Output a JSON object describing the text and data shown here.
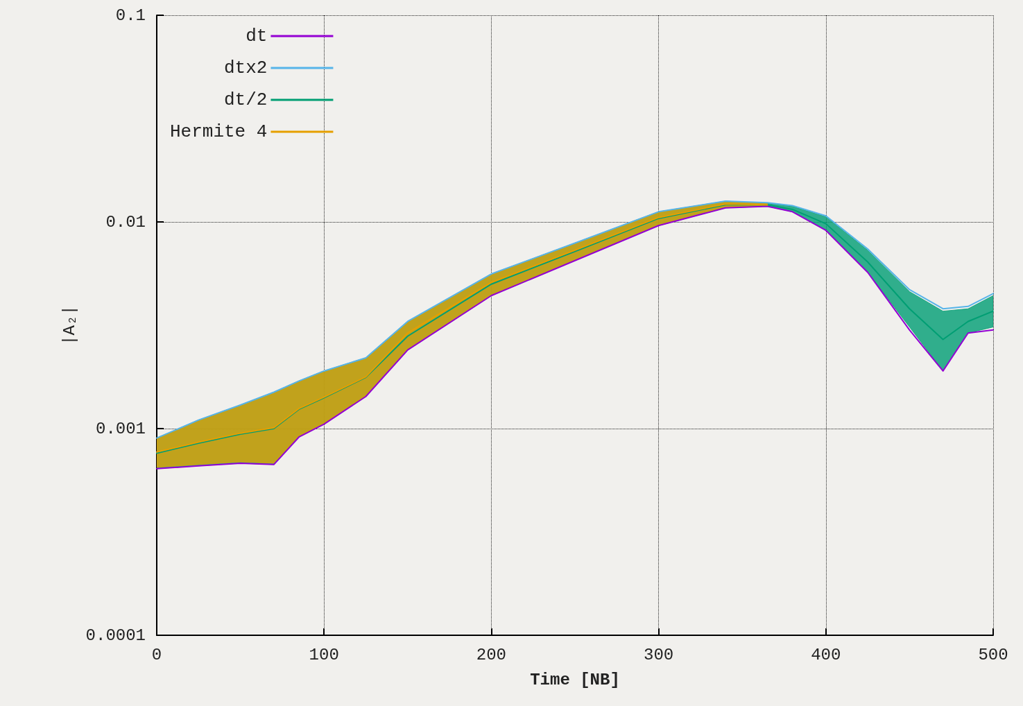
{
  "chart_data": {
    "type": "line",
    "xlabel": "Time [NB]",
    "ylabel": "|A₂|",
    "log": "y",
    "grid": true,
    "legend": "top left",
    "marker": "none",
    "line_style": "solid",
    "xlim": [
      0,
      500
    ],
    "xticks": [
      0,
      100,
      200,
      300,
      400,
      500
    ],
    "ylim": [
      0.0001,
      0.1
    ],
    "yticks": [
      0.0001,
      0.001,
      0.01,
      0.1
    ],
    "series": [
      {
        "name": "dt",
        "color": "#9400d3",
        "x": [
          0,
          25,
          50,
          70,
          85,
          100,
          125,
          150,
          200,
          250,
          300,
          340,
          365,
          380,
          400,
          425,
          450,
          470,
          485,
          500
        ],
        "values": [
          0.00064,
          0.00066,
          0.00068,
          0.00067,
          0.00091,
          0.00105,
          0.00143,
          0.0024,
          0.0044,
          0.0065,
          0.0096,
          0.0117,
          0.0119,
          0.0112,
          0.0091,
          0.0057,
          0.003,
          0.0019,
          0.0029,
          0.003
        ]
      },
      {
        "name": "dtx2",
        "color": "#56b4e9",
        "x": [
          0,
          25,
          50,
          70,
          85,
          100,
          125,
          150,
          200,
          250,
          300,
          340,
          365,
          380,
          400,
          425,
          450,
          470,
          485,
          500
        ],
        "values": [
          0.0009,
          0.0011,
          0.0013,
          0.0015,
          0.0017,
          0.0019,
          0.0022,
          0.0033,
          0.0056,
          0.0079,
          0.0112,
          0.0126,
          0.0124,
          0.012,
          0.0107,
          0.0074,
          0.0047,
          0.0038,
          0.0039,
          0.0045
        ]
      },
      {
        "name": "dt/2",
        "color": "#009e73",
        "x": [
          0,
          25,
          50,
          70,
          85,
          100,
          125,
          150,
          200,
          250,
          300,
          340,
          365,
          380,
          400,
          425,
          450,
          470,
          485,
          500
        ],
        "values": [
          0.00076,
          0.00085,
          0.00094,
          0.001,
          0.00124,
          0.00141,
          0.00177,
          0.0028,
          0.005,
          0.0072,
          0.0104,
          0.0121,
          0.0121,
          0.0115,
          0.0098,
          0.0064,
          0.0038,
          0.0027,
          0.0033,
          0.0037
        ],
        "lower": [
          0.00064,
          0.00066,
          0.00068,
          0.00067,
          0.00091,
          0.00105,
          0.00143,
          0.0024,
          0.0044,
          0.0065,
          0.0096,
          0.0117,
          0.0119,
          0.0112,
          0.0091,
          0.0057,
          0.0031,
          0.0019,
          0.0029,
          0.0031
        ],
        "upper": [
          0.0009,
          0.0011,
          0.0013,
          0.0015,
          0.0017,
          0.0019,
          0.0022,
          0.0033,
          0.0056,
          0.0079,
          0.0112,
          0.0126,
          0.0123,
          0.0119,
          0.0106,
          0.0073,
          0.0046,
          0.0037,
          0.0038,
          0.0044
        ]
      },
      {
        "name": "Hermite 4",
        "color": "#e69f00",
        "x": [
          0,
          25,
          50,
          70,
          85,
          100,
          125,
          150,
          200,
          250,
          300,
          340,
          365
        ],
        "values": [
          0.00077,
          0.00086,
          0.00095,
          0.00101,
          0.00125,
          0.00142,
          0.00178,
          0.0029,
          0.0051,
          0.0073,
          0.0105,
          0.0122,
          0.0121
        ],
        "lower": [
          0.00065,
          0.00067,
          0.00069,
          0.00068,
          0.00092,
          0.00106,
          0.00144,
          0.0024,
          0.0044,
          0.0065,
          0.0096,
          0.0117,
          0.0119
        ],
        "upper": [
          0.0009,
          0.0011,
          0.0013,
          0.0015,
          0.0017,
          0.0019,
          0.0022,
          0.0033,
          0.0056,
          0.0079,
          0.0112,
          0.0126,
          0.0123
        ]
      }
    ]
  }
}
